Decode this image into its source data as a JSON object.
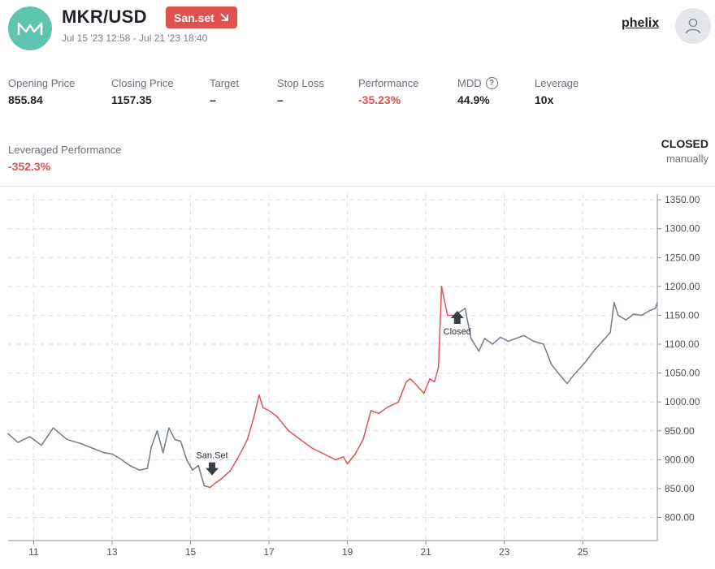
{
  "header": {
    "pair": "MKR/USD",
    "signal_badge": "San.set",
    "date_range": "Jul 15 '23 12:58 - Jul 21 '23 18:40",
    "username": "phelix",
    "logo_icon": "maker-logo-icon",
    "avatar_icon": "user-icon",
    "badge_icon": "arrow-down-right-icon"
  },
  "stats": [
    {
      "label": "Opening Price",
      "value": "855.84"
    },
    {
      "label": "Closing Price",
      "value": "1157.35"
    },
    {
      "label": "Target",
      "value": "–"
    },
    {
      "label": "Stop Loss",
      "value": "–"
    },
    {
      "label": "Performance",
      "value": "-35.23%"
    },
    {
      "label": "MDD",
      "value": "44.9%"
    },
    {
      "label": "Leverage",
      "value": "10x"
    }
  ],
  "leveraged": {
    "label": "Leveraged Performance",
    "value": "-352.3%"
  },
  "status": {
    "state": "CLOSED",
    "how": "manually"
  },
  "colors": {
    "accent_red": "#e0524f",
    "logo_teal": "#5fc4b0",
    "price_line": "#737a8c"
  },
  "chart_data": {
    "type": "line",
    "x_axis": {
      "ticks": [
        "11",
        "13",
        "15",
        "17",
        "19",
        "21",
        "23",
        "25"
      ]
    },
    "y_axis": {
      "ticks": [
        "1350.00",
        "1300.00",
        "1250.00",
        "1200.00",
        "1150.00",
        "1100.00",
        "1050.00",
        "1000.00",
        "950.00",
        "900.00",
        "850.00",
        "800.00"
      ],
      "range": [
        760,
        1360
      ]
    },
    "x_domain": [
      10.35,
      26.9
    ],
    "series": [
      {
        "x": [
          10.35,
          10.6,
          10.9,
          11.2,
          11.5,
          11.85,
          12.2,
          12.5,
          12.8,
          13.0,
          13.2,
          13.45,
          13.7,
          13.9,
          14.0,
          14.15,
          14.3,
          14.45,
          14.6,
          14.75,
          14.9,
          15.05,
          15.2,
          15.35,
          15.5,
          15.6,
          15.75,
          16.0,
          16.2,
          16.45,
          16.62,
          16.75,
          16.85,
          17.0,
          17.2,
          17.5,
          17.8,
          18.1,
          18.4,
          18.7,
          18.9,
          19.0,
          19.2,
          19.4,
          19.6,
          19.8,
          20.0,
          20.3,
          20.5,
          20.6,
          20.75,
          20.95,
          21.1,
          21.22,
          21.32,
          21.4,
          21.55,
          21.75,
          21.85,
          22.0,
          22.15,
          22.35,
          22.5,
          22.7,
          22.9,
          23.1,
          23.3,
          23.5,
          23.75,
          24.0,
          24.2,
          24.35,
          24.5,
          24.6,
          24.75,
          24.95,
          25.1,
          25.3,
          25.5,
          25.7,
          25.8,
          25.9,
          26.1,
          26.3,
          26.5,
          26.7,
          26.85,
          26.9
        ],
        "y": [
          945,
          930,
          940,
          925,
          955,
          935,
          928,
          920,
          912,
          910,
          902,
          890,
          882,
          885,
          922,
          950,
          912,
          955,
          935,
          932,
          900,
          882,
          890,
          855,
          852,
          858,
          865,
          880,
          902,
          935,
          975,
          1012,
          990,
          985,
          975,
          950,
          935,
          920,
          910,
          900,
          905,
          893,
          910,
          935,
          985,
          980,
          990,
          1000,
          1035,
          1040,
          1030,
          1015,
          1040,
          1035,
          1060,
          1200,
          1150,
          1150,
          1155,
          1162,
          1110,
          1088,
          1110,
          1100,
          1112,
          1105,
          1110,
          1115,
          1105,
          1100,
          1065,
          1052,
          1040,
          1032,
          1045,
          1060,
          1072,
          1090,
          1105,
          1120,
          1172,
          1150,
          1142,
          1152,
          1150,
          1158,
          1162,
          1172
        ]
      }
    ],
    "signal_window": [
      15.5,
      21.72
    ],
    "annotations": [
      {
        "label": "San.Set",
        "x": 15.55,
        "y": 866
      },
      {
        "label": "Closed",
        "x": 21.8,
        "y": 1145
      }
    ]
  }
}
